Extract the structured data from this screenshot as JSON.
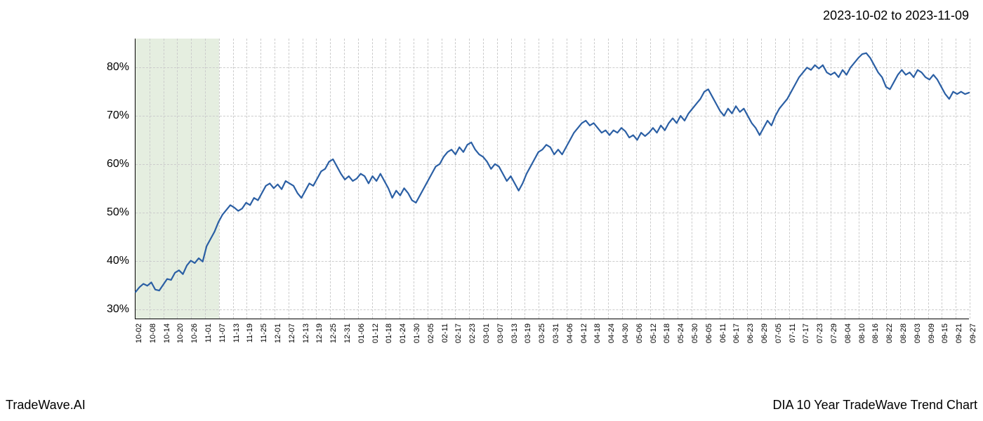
{
  "header": {
    "date_range": "2023-10-02 to 2023-11-09"
  },
  "footer": {
    "left": "TradeWave.AI",
    "right": "DIA 10 Year TradeWave Trend Chart"
  },
  "chart": {
    "type": "line",
    "background_color": "#ffffff",
    "grid_color": "#cccccc",
    "grid_dash": true,
    "axis_color": "#000000",
    "line_color": "#2b5fa4",
    "line_width": 2.2,
    "highlight": {
      "fill": "#d7e5d0",
      "opacity": 0.65,
      "x_start_index": 0,
      "x_end_index": 6
    },
    "ylim": [
      28,
      86
    ],
    "y_ticks": [
      30,
      40,
      50,
      60,
      70,
      80
    ],
    "y_tick_labels": [
      "30%",
      "40%",
      "50%",
      "60%",
      "70%",
      "80%"
    ],
    "y_tick_fontsize": 16,
    "x_tick_fontsize": 11,
    "x_ticks": [
      "10-02",
      "10-08",
      "10-14",
      "10-20",
      "10-26",
      "11-01",
      "11-07",
      "11-13",
      "11-19",
      "11-25",
      "12-01",
      "12-07",
      "12-13",
      "12-19",
      "12-25",
      "12-31",
      "01-06",
      "01-12",
      "01-18",
      "01-24",
      "01-30",
      "02-05",
      "02-11",
      "02-17",
      "02-23",
      "03-01",
      "03-07",
      "03-13",
      "03-19",
      "03-25",
      "03-31",
      "04-06",
      "04-12",
      "04-18",
      "04-24",
      "04-30",
      "05-06",
      "05-12",
      "05-18",
      "05-24",
      "05-30",
      "06-05",
      "06-11",
      "06-17",
      "06-23",
      "06-29",
      "07-05",
      "07-11",
      "07-17",
      "07-23",
      "07-29",
      "08-04",
      "08-10",
      "08-16",
      "08-22",
      "08-28",
      "09-03",
      "09-09",
      "09-15",
      "09-21",
      "09-27"
    ],
    "series": [
      33.5,
      34.5,
      35.2,
      34.8,
      35.5,
      34.0,
      33.8,
      35.0,
      36.2,
      36.0,
      37.5,
      38.0,
      37.2,
      39.0,
      40.0,
      39.5,
      40.5,
      39.8,
      43.0,
      44.5,
      46.0,
      48.0,
      49.5,
      50.5,
      51.5,
      51.0,
      50.3,
      50.8,
      52.0,
      51.5,
      53.0,
      52.5,
      54.0,
      55.5,
      56.0,
      55.0,
      55.8,
      54.8,
      56.5,
      56.0,
      55.5,
      54.0,
      53.0,
      54.5,
      56.0,
      55.5,
      57.0,
      58.5,
      59.0,
      60.5,
      61.0,
      59.5,
      58.0,
      56.8,
      57.5,
      56.5,
      57.0,
      58.0,
      57.5,
      56.0,
      57.5,
      56.5,
      58.0,
      56.5,
      55.0,
      53.0,
      54.5,
      53.5,
      55.0,
      54.0,
      52.5,
      52.0,
      53.5,
      55.0,
      56.5,
      58.0,
      59.5,
      60.0,
      61.5,
      62.5,
      63.0,
      62.0,
      63.5,
      62.5,
      64.0,
      64.5,
      63.0,
      62.0,
      61.5,
      60.5,
      59.0,
      60.0,
      59.5,
      58.0,
      56.5,
      57.5,
      56.0,
      54.5,
      56.0,
      58.0,
      59.5,
      61.0,
      62.5,
      63.0,
      64.0,
      63.5,
      62.0,
      63.0,
      62.0,
      63.5,
      65.0,
      66.5,
      67.5,
      68.5,
      69.0,
      68.0,
      68.5,
      67.5,
      66.5,
      67.0,
      66.0,
      67.0,
      66.5,
      67.5,
      66.8,
      65.5,
      66.0,
      65.0,
      66.5,
      65.8,
      66.5,
      67.5,
      66.5,
      68.0,
      67.0,
      68.5,
      69.5,
      68.5,
      70.0,
      69.0,
      70.5,
      71.5,
      72.5,
      73.5,
      75.0,
      75.5,
      74.0,
      72.5,
      71.0,
      70.0,
      71.5,
      70.5,
      72.0,
      70.8,
      71.5,
      70.0,
      68.5,
      67.5,
      66.0,
      67.5,
      69.0,
      68.0,
      70.0,
      71.5,
      72.5,
      73.5,
      75.0,
      76.5,
      78.0,
      79.0,
      80.0,
      79.5,
      80.5,
      79.8,
      80.5,
      79.0,
      78.5,
      79.0,
      78.0,
      79.5,
      78.5,
      80.0,
      81.0,
      82.0,
      82.8,
      83.0,
      82.0,
      80.5,
      79.0,
      78.0,
      76.0,
      75.5,
      77.0,
      78.5,
      79.5,
      78.5,
      79.0,
      78.0,
      79.5,
      79.0,
      78.0,
      77.5,
      78.5,
      77.5,
      76.0,
      74.5,
      73.5,
      75.0,
      74.5,
      75.0,
      74.5,
      74.8
    ]
  }
}
